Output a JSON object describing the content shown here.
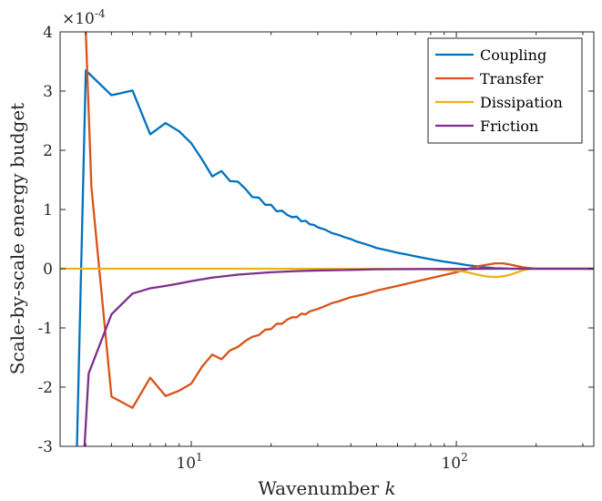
{
  "chart_data": {
    "type": "line",
    "xlabel": "Wavenumber",
    "xlabel_var": "k",
    "ylabel": "Scale-by-scale energy budget",
    "y_exponent_label": "×10",
    "y_exponent": "-4",
    "x_scale": "log",
    "xlim": [
      3.2,
      330
    ],
    "ylim": [
      -3,
      4
    ],
    "x_ticks": [
      10,
      100
    ],
    "x_tick_labels": [
      {
        "base": "10",
        "exp": "1"
      },
      {
        "base": "10",
        "exp": "2"
      }
    ],
    "y_ticks": [
      -3,
      -2,
      -1,
      0,
      1,
      2,
      3,
      4
    ],
    "y_tick_labels": [
      "-3",
      "-2",
      "-1",
      "0",
      "1",
      "2",
      "3",
      "4"
    ],
    "grid": false,
    "legend_position": "top-right",
    "series": [
      {
        "name": "Coupling",
        "color": "#0072BD",
        "x": [
          3.7,
          4,
          5,
          6,
          7,
          8,
          9,
          10,
          11,
          12,
          13,
          14,
          15,
          16,
          17,
          18,
          19,
          20,
          21,
          22,
          23,
          24,
          25,
          26,
          27,
          28,
          29,
          30,
          32,
          34,
          36,
          38,
          40,
          42,
          45,
          48,
          50,
          55,
          60,
          65,
          70,
          80,
          90,
          100,
          110,
          120,
          130,
          140,
          150,
          160,
          170,
          180,
          200,
          250,
          330
        ],
        "y": [
          -3.1,
          3.35,
          2.93,
          3.01,
          2.27,
          2.46,
          2.32,
          2.12,
          1.84,
          1.56,
          1.65,
          1.48,
          1.47,
          1.35,
          1.21,
          1.2,
          1.08,
          1.08,
          0.97,
          0.98,
          0.91,
          0.87,
          0.88,
          0.8,
          0.81,
          0.75,
          0.74,
          0.7,
          0.66,
          0.6,
          0.57,
          0.53,
          0.5,
          0.46,
          0.42,
          0.38,
          0.35,
          0.31,
          0.27,
          0.24,
          0.21,
          0.16,
          0.12,
          0.09,
          0.06,
          0.04,
          0.02,
          0.01,
          0.005,
          0.0,
          0.0,
          0.0,
          0.0,
          0.0,
          0.0
        ]
      },
      {
        "name": "Transfer",
        "color": "#D95319",
        "x": [
          4,
          4.2,
          5,
          6,
          7,
          8,
          9,
          10,
          11,
          12,
          13,
          14,
          15,
          16,
          17,
          18,
          19,
          20,
          21,
          22,
          23,
          24,
          25,
          26,
          27,
          28,
          30,
          32,
          34,
          36,
          40,
          45,
          50,
          60,
          70,
          80,
          100,
          120,
          140,
          150,
          160,
          180,
          200,
          250,
          330
        ],
        "y": [
          4.0,
          1.38,
          -2.16,
          -2.35,
          -1.84,
          -2.15,
          -2.06,
          -1.94,
          -1.65,
          -1.45,
          -1.53,
          -1.38,
          -1.32,
          -1.22,
          -1.15,
          -1.12,
          -1.03,
          -1.02,
          -0.93,
          -0.93,
          -0.86,
          -0.82,
          -0.82,
          -0.76,
          -0.77,
          -0.72,
          -0.68,
          -0.63,
          -0.58,
          -0.55,
          -0.48,
          -0.43,
          -0.37,
          -0.29,
          -0.22,
          -0.16,
          -0.06,
          0.04,
          0.09,
          0.09,
          0.07,
          0.02,
          0.0,
          0.0,
          0.0
        ]
      },
      {
        "name": "Dissipation",
        "color": "#EDB120",
        "x": [
          3.2,
          10,
          50,
          80,
          100,
          110,
          120,
          130,
          140,
          150,
          160,
          170,
          180,
          190,
          200,
          250,
          330
        ],
        "y": [
          0.0,
          0.0,
          -0.002,
          -0.005,
          -0.03,
          -0.06,
          -0.1,
          -0.13,
          -0.14,
          -0.13,
          -0.1,
          -0.06,
          -0.02,
          -0.005,
          0.0,
          0.0,
          0.0
        ]
      },
      {
        "name": "Friction",
        "color": "#7E2F8E",
        "x": [
          3.95,
          4.1,
          5,
          6,
          7,
          8,
          9,
          10,
          12,
          15,
          20,
          25,
          30,
          40,
          50,
          60,
          80,
          100,
          150,
          200,
          330
        ],
        "y": [
          -3.05,
          -1.77,
          -0.77,
          -0.42,
          -0.33,
          -0.29,
          -0.25,
          -0.21,
          -0.15,
          -0.1,
          -0.06,
          -0.04,
          -0.03,
          -0.02,
          -0.01,
          -0.008,
          -0.005,
          -0.003,
          0.0,
          0.0,
          0.0
        ]
      }
    ]
  }
}
